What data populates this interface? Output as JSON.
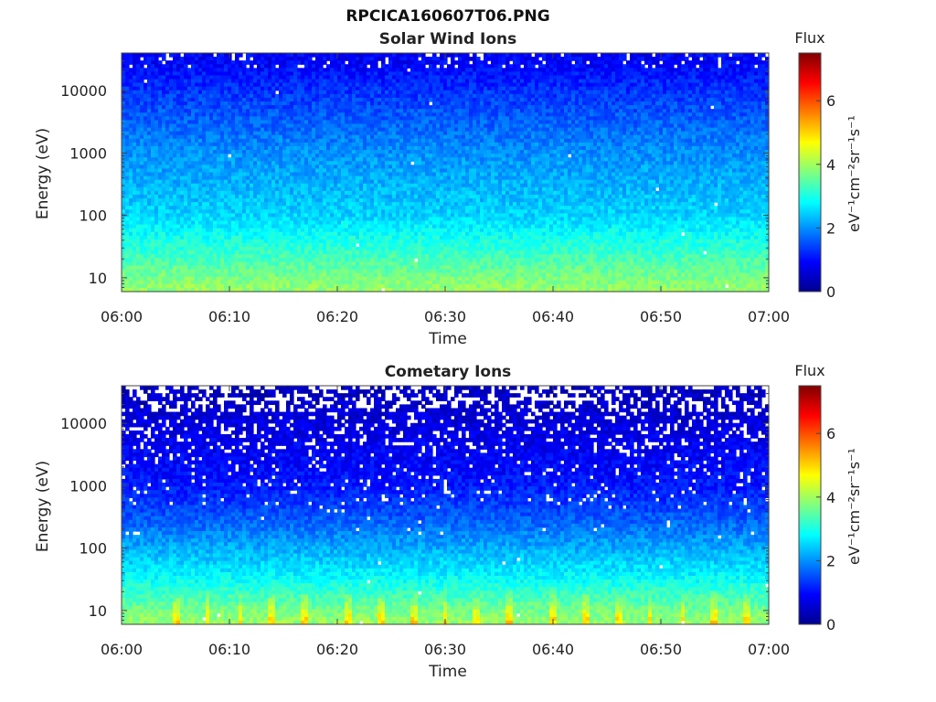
{
  "figure_title": "RPCICA160607T06.PNG",
  "chart_data": [
    {
      "type": "heatmap",
      "title": "Solar Wind Ions",
      "xlabel": "Time",
      "ylabel": "Energy (eV)",
      "x_ticks": [
        "06:00",
        "06:10",
        "06:20",
        "06:30",
        "06:40",
        "06:50",
        "07:00"
      ],
      "x_range": [
        "06:00",
        "07:00"
      ],
      "y_scale": "log",
      "y_ticks": [
        10,
        100,
        1000,
        10000
      ],
      "y_tick_labels": [
        "10",
        "100",
        "1000",
        "10000"
      ],
      "ylim": [
        6,
        40000
      ],
      "colorbar": {
        "title": "Flux",
        "label": "eV⁻¹cm⁻²sr⁻¹s⁻¹",
        "ticks": [
          0,
          2,
          4,
          6
        ],
        "range": [
          0,
          7.5
        ],
        "colormap": "jet"
      },
      "flux_profile_by_energy": [
        {
          "energy_eV": 7,
          "flux": 3.9
        },
        {
          "energy_eV": 15,
          "flux": 3.5
        },
        {
          "energy_eV": 40,
          "flux": 3.0
        },
        {
          "energy_eV": 100,
          "flux": 2.5
        },
        {
          "energy_eV": 1000,
          "flux": 2.0
        },
        {
          "energy_eV": 10000,
          "flux": 1.3
        },
        {
          "energy_eV": 30000,
          "flux": 0.9
        }
      ]
    },
    {
      "type": "heatmap",
      "title": "Cometary Ions",
      "xlabel": "Time",
      "ylabel": "Energy (eV)",
      "x_ticks": [
        "06:00",
        "06:10",
        "06:20",
        "06:30",
        "06:40",
        "06:50",
        "07:00"
      ],
      "x_range": [
        "06:00",
        "07:00"
      ],
      "y_scale": "log",
      "y_ticks": [
        10,
        100,
        1000,
        10000
      ],
      "y_tick_labels": [
        "10",
        "100",
        "1000",
        "10000"
      ],
      "ylim": [
        6,
        40000
      ],
      "colorbar": {
        "title": "Flux",
        "label": "eV⁻¹cm⁻²sr⁻¹s⁻¹",
        "ticks": [
          0,
          2,
          4,
          6
        ],
        "range": [
          0,
          7.5
        ],
        "colormap": "jet"
      },
      "flux_profile_by_energy": [
        {
          "energy_eV": 7,
          "flux": 3.9
        },
        {
          "energy_eV": 15,
          "flux": 3.4
        },
        {
          "energy_eV": 40,
          "flux": 2.7
        },
        {
          "energy_eV": 100,
          "flux": 2.2
        },
        {
          "energy_eV": 300,
          "flux": 1.6
        },
        {
          "energy_eV": 1000,
          "flux": 1.1
        },
        {
          "energy_eV": 10000,
          "flux": 0.7
        },
        {
          "energy_eV": 30000,
          "flux": 0.5
        }
      ],
      "bright_bursts_at": [
        "06:05",
        "06:08",
        "06:11",
        "06:14",
        "06:17",
        "06:21",
        "06:24",
        "06:27",
        "06:30",
        "06:33",
        "06:36",
        "06:40",
        "06:43",
        "06:46",
        "06:49",
        "06:52",
        "06:55",
        "06:58"
      ]
    }
  ]
}
